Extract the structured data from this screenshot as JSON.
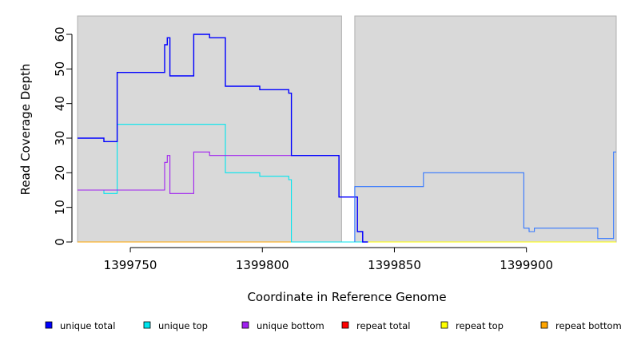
{
  "chart_data": {
    "type": "line",
    "title": "",
    "xlabel": "Coordinate in Reference Genome",
    "ylabel": "Read Coverage Depth",
    "xlim": [
      1399730,
      1399934
    ],
    "ylim": [
      0,
      65
    ],
    "x_ticks": [
      1399750,
      1399800,
      1399850,
      1399900
    ],
    "y_ticks": [
      0,
      10,
      20,
      30,
      40,
      50,
      60
    ],
    "x_tick_labels": [
      "1399750",
      "1399800",
      "1399850",
      "1399900"
    ],
    "y_tick_labels": [
      "0",
      "10",
      "20",
      "30",
      "40",
      "50",
      "60"
    ],
    "grid": false,
    "shaded_regions": [
      [
        1399730,
        1399830
      ],
      [
        1399835,
        1399934
      ]
    ],
    "shade_color": "#d9d9d9",
    "legend_position": "bottom",
    "series": [
      {
        "name": "unique total",
        "color": "#0000ff",
        "points": [
          [
            1399730,
            30
          ],
          [
            1399740,
            30
          ],
          [
            1399740,
            29
          ],
          [
            1399745,
            29
          ],
          [
            1399745,
            49
          ],
          [
            1399763,
            49
          ],
          [
            1399763,
            57
          ],
          [
            1399764,
            57
          ],
          [
            1399764,
            59
          ],
          [
            1399765,
            59
          ],
          [
            1399765,
            48
          ],
          [
            1399774,
            48
          ],
          [
            1399774,
            60
          ],
          [
            1399780,
            60
          ],
          [
            1399780,
            59
          ],
          [
            1399786,
            59
          ],
          [
            1399786,
            45
          ],
          [
            1399799,
            45
          ],
          [
            1399799,
            44
          ],
          [
            1399810,
            44
          ],
          [
            1399810,
            43
          ],
          [
            1399811,
            43
          ],
          [
            1399811,
            25
          ],
          [
            1399829,
            25
          ],
          [
            1399829,
            13
          ],
          [
            1399836,
            13
          ],
          [
            1399836,
            3
          ],
          [
            1399838,
            3
          ],
          [
            1399838,
            0
          ],
          [
            1399840,
            0
          ]
        ]
      },
      {
        "name": "unique top",
        "color": "#00e5ee",
        "points": [
          [
            1399730,
            15
          ],
          [
            1399740,
            15
          ],
          [
            1399740,
            14
          ],
          [
            1399745,
            14
          ],
          [
            1399745,
            34
          ],
          [
            1399786,
            34
          ],
          [
            1399786,
            20
          ],
          [
            1399799,
            20
          ],
          [
            1399799,
            19
          ],
          [
            1399810,
            19
          ],
          [
            1399810,
            18
          ],
          [
            1399811,
            18
          ],
          [
            1399811,
            0
          ],
          [
            1399840,
            0
          ]
        ]
      },
      {
        "name": "unique bottom",
        "color": "#a020f0",
        "points": [
          [
            1399730,
            15
          ],
          [
            1399763,
            15
          ],
          [
            1399763,
            23
          ],
          [
            1399764,
            23
          ],
          [
            1399764,
            25
          ],
          [
            1399765,
            25
          ],
          [
            1399765,
            14
          ],
          [
            1399774,
            14
          ],
          [
            1399774,
            26
          ],
          [
            1399780,
            26
          ],
          [
            1399780,
            25
          ],
          [
            1399829,
            25
          ],
          [
            1399829,
            13
          ],
          [
            1399836,
            13
          ],
          [
            1399836,
            3
          ],
          [
            1399838,
            3
          ],
          [
            1399838,
            0
          ],
          [
            1399840,
            0
          ]
        ]
      },
      {
        "name": "repeat total",
        "color": "#ff0000",
        "points": [
          [
            1399730,
            0
          ],
          [
            1399934,
            0
          ]
        ]
      },
      {
        "name": "repeat top",
        "color": "#ffff00",
        "points": [
          [
            1399730,
            0
          ],
          [
            1399934,
            0
          ]
        ]
      },
      {
        "name": "repeat bottom",
        "color": "#ffa500",
        "points": [
          [
            1399730,
            0
          ],
          [
            1399830,
            0
          ]
        ]
      },
      {
        "name": "",
        "color": "#3377ff",
        "points": [
          [
            1399835,
            0
          ],
          [
            1399835,
            16
          ],
          [
            1399861,
            16
          ],
          [
            1399861,
            20
          ],
          [
            1399899,
            20
          ],
          [
            1399899,
            4
          ],
          [
            1399901,
            4
          ],
          [
            1399901,
            3
          ],
          [
            1399903,
            3
          ],
          [
            1399903,
            4
          ],
          [
            1399927,
            4
          ],
          [
            1399927,
            1
          ],
          [
            1399933,
            1
          ],
          [
            1399933,
            26
          ],
          [
            1399934,
            26
          ]
        ]
      }
    ],
    "legend": [
      "unique total",
      "unique top",
      "unique bottom",
      "repeat total",
      "repeat top",
      "repeat bottom"
    ]
  }
}
